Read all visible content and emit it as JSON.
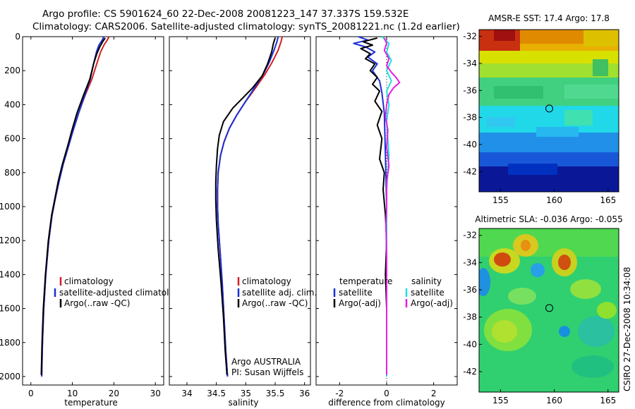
{
  "figure": {
    "title_line1": "Argo profile: CS 5901624_60 22-Dec-2008 20081223_147 37.337S 159.532E",
    "title_line2": "Climatology: CARS2006. Satellite-adjusted climatology: synTS_20081221.nc (1.2d earlier)",
    "footer_vertical": "CSIRO 27-Dec-2008 10:34:08",
    "credit_line1": "Argo AUSTRALIA",
    "credit_line2": "PI: Susan Wijffels",
    "colors": {
      "climatology": "#d42020",
      "satellite": "#1a2fd6",
      "argo": "#000000",
      "cyan": "#22e0e0",
      "magenta": "#e020e0"
    }
  },
  "chart_data": [
    {
      "id": "temperature",
      "type": "line",
      "xlabel": "temperature",
      "xlim": [
        -2,
        32
      ],
      "ylim": [
        2050,
        0
      ],
      "xticks": [
        0,
        10,
        20,
        30
      ],
      "yticks": [
        0,
        200,
        400,
        600,
        800,
        1000,
        1200,
        1400,
        1600,
        1800,
        2000
      ],
      "legend": [
        "climatology",
        "satellite-adjusted climatology",
        "Argo(..raw -QC)"
      ],
      "series": [
        {
          "name": "climatology",
          "color": "#d42020",
          "points": [
            [
              18.8,
              0
            ],
            [
              18.4,
              20
            ],
            [
              17.6,
              50
            ],
            [
              16.8,
              90
            ],
            [
              16.0,
              150
            ],
            [
              14.7,
              250
            ],
            [
              13.0,
              350
            ],
            [
              11.5,
              450
            ],
            [
              10.2,
              550
            ],
            [
              9.0,
              650
            ],
            [
              7.8,
              750
            ],
            [
              6.8,
              850
            ],
            [
              5.9,
              950
            ],
            [
              5.1,
              1050
            ],
            [
              4.3,
              1200
            ],
            [
              3.6,
              1400
            ],
            [
              3.1,
              1600
            ],
            [
              2.8,
              1800
            ],
            [
              2.6,
              2000
            ]
          ]
        },
        {
          "name": "satellite-adjusted climatology",
          "color": "#1a2fd6",
          "points": [
            [
              17.6,
              0
            ],
            [
              17.2,
              20
            ],
            [
              16.4,
              50
            ],
            [
              15.8,
              90
            ],
            [
              15.2,
              150
            ],
            [
              14.3,
              250
            ],
            [
              12.9,
              350
            ],
            [
              11.5,
              450
            ],
            [
              10.2,
              550
            ],
            [
              9.0,
              650
            ],
            [
              7.8,
              750
            ],
            [
              6.8,
              850
            ],
            [
              5.9,
              950
            ],
            [
              5.1,
              1050
            ],
            [
              4.3,
              1200
            ],
            [
              3.6,
              1400
            ],
            [
              3.1,
              1600
            ],
            [
              2.8,
              1800
            ],
            [
              2.6,
              2000
            ]
          ]
        },
        {
          "name": "Argo(..raw -QC)",
          "color": "#000000",
          "points": [
            [
              17.9,
              8
            ],
            [
              17.3,
              30
            ],
            [
              16.6,
              60
            ],
            [
              15.9,
              100
            ],
            [
              15.1,
              160
            ],
            [
              14.2,
              250
            ],
            [
              12.6,
              350
            ],
            [
              11.1,
              450
            ],
            [
              9.9,
              550
            ],
            [
              8.8,
              650
            ],
            [
              7.6,
              750
            ],
            [
              6.6,
              850
            ],
            [
              5.8,
              950
            ],
            [
              5.0,
              1050
            ],
            [
              4.2,
              1200
            ],
            [
              3.5,
              1400
            ],
            [
              3.0,
              1600
            ],
            [
              2.7,
              1800
            ],
            [
              2.5,
              1990
            ]
          ]
        }
      ]
    },
    {
      "id": "salinity",
      "type": "line",
      "xlabel": "salinity",
      "xlim": [
        33.7,
        36.1
      ],
      "ylim": [
        2050,
        0
      ],
      "xticks": [
        34,
        34.5,
        35,
        35.5,
        36
      ],
      "legend": [
        "climatology",
        "satellite adj. clim.",
        "Argo(..raw -QC)"
      ],
      "series": [
        {
          "name": "climatology",
          "color": "#d42020",
          "points": [
            [
              35.62,
              0
            ],
            [
              35.6,
              30
            ],
            [
              35.55,
              80
            ],
            [
              35.45,
              150
            ],
            [
              35.33,
              220
            ],
            [
              35.17,
              300
            ],
            [
              35.0,
              380
            ],
            [
              34.85,
              460
            ],
            [
              34.72,
              540
            ],
            [
              34.63,
              620
            ],
            [
              34.57,
              700
            ],
            [
              34.53,
              800
            ],
            [
              34.52,
              900
            ],
            [
              34.52,
              1000
            ],
            [
              34.53,
              1100
            ],
            [
              34.56,
              1250
            ],
            [
              34.6,
              1450
            ],
            [
              34.63,
              1650
            ],
            [
              34.66,
              1850
            ],
            [
              34.69,
              2000
            ]
          ]
        },
        {
          "name": "satellite adj. clim.",
          "color": "#1a2fd6",
          "points": [
            [
              35.55,
              0
            ],
            [
              35.53,
              30
            ],
            [
              35.48,
              80
            ],
            [
              35.4,
              150
            ],
            [
              35.3,
              220
            ],
            [
              35.15,
              300
            ],
            [
              35.0,
              380
            ],
            [
              34.85,
              460
            ],
            [
              34.72,
              540
            ],
            [
              34.63,
              620
            ],
            [
              34.57,
              700
            ],
            [
              34.53,
              800
            ],
            [
              34.52,
              900
            ],
            [
              34.52,
              1000
            ],
            [
              34.53,
              1100
            ],
            [
              34.56,
              1250
            ],
            [
              34.6,
              1450
            ],
            [
              34.63,
              1650
            ],
            [
              34.66,
              1850
            ],
            [
              34.69,
              2000
            ]
          ]
        },
        {
          "name": "Argo(..raw -QC)",
          "color": "#000000",
          "points": [
            [
              35.5,
              8
            ],
            [
              35.47,
              40
            ],
            [
              35.44,
              90
            ],
            [
              35.37,
              160
            ],
            [
              35.28,
              230
            ],
            [
              35.12,
              300
            ],
            [
              34.95,
              360
            ],
            [
              34.78,
              420
            ],
            [
              34.62,
              500
            ],
            [
              34.55,
              580
            ],
            [
              34.52,
              660
            ],
            [
              34.5,
              760
            ],
            [
              34.49,
              860
            ],
            [
              34.49,
              960
            ],
            [
              34.5,
              1080
            ],
            [
              34.53,
              1250
            ],
            [
              34.58,
              1450
            ],
            [
              34.62,
              1650
            ],
            [
              34.65,
              1850
            ],
            [
              34.68,
              1990
            ]
          ]
        }
      ]
    },
    {
      "id": "difference",
      "type": "line",
      "xlabel": "difference from climatology",
      "xlim": [
        -3,
        3
      ],
      "ylim": [
        2050,
        0
      ],
      "xticks": [
        -2,
        0,
        2
      ],
      "legend_left_title": "temperature",
      "legend_right_title": "salinity",
      "legend_left": [
        "satellite",
        "Argo(-adj)"
      ],
      "legend_right": [
        "satellite",
        "Argo(-adj)"
      ],
      "series": [
        {
          "name": "temperature satellite",
          "color": "#1a2fd6",
          "points": [
            [
              -1.2,
              0
            ],
            [
              -0.8,
              20
            ],
            [
              -1.4,
              40
            ],
            [
              -0.9,
              60
            ],
            [
              -0.5,
              90
            ],
            [
              -0.8,
              120
            ],
            [
              -0.4,
              160
            ],
            [
              -0.6,
              200
            ],
            [
              -0.3,
              260
            ],
            [
              -0.2,
              330
            ],
            [
              -0.1,
              450
            ],
            [
              -0.05,
              700
            ],
            [
              0.0,
              1000
            ],
            [
              0.0,
              1400
            ],
            [
              0.0,
              2000
            ]
          ]
        },
        {
          "name": "temperature Argo(-adj)",
          "color": "#000000",
          "points": [
            [
              -0.4,
              8
            ],
            [
              -1.0,
              30
            ],
            [
              -0.6,
              50
            ],
            [
              -1.1,
              70
            ],
            [
              -0.7,
              100
            ],
            [
              -0.9,
              130
            ],
            [
              -0.5,
              160
            ],
            [
              -0.7,
              200
            ],
            [
              -0.4,
              240
            ],
            [
              -0.6,
              280
            ],
            [
              -0.3,
              320
            ],
            [
              -0.5,
              380
            ],
            [
              -0.2,
              440
            ],
            [
              -0.4,
              520
            ],
            [
              -0.2,
              600
            ],
            [
              -0.3,
              720
            ],
            [
              -0.1,
              800
            ],
            [
              -0.15,
              900
            ],
            [
              -0.05,
              1050
            ],
            [
              0.0,
              1200
            ],
            [
              -0.05,
              1400
            ],
            [
              0.0,
              1600
            ],
            [
              0.0,
              1990
            ]
          ]
        },
        {
          "name": "salinity satellite",
          "color": "#22e0e0",
          "points": [
            [
              -0.2,
              0
            ],
            [
              0.1,
              40
            ],
            [
              0.0,
              90
            ],
            [
              0.2,
              140
            ],
            [
              0.0,
              200
            ],
            [
              0.2,
              260
            ],
            [
              0.0,
              320
            ],
            [
              0.1,
              400
            ],
            [
              0.0,
              500
            ],
            [
              0.1,
              700
            ],
            [
              0.0,
              900
            ],
            [
              0.0,
              1200
            ],
            [
              0.0,
              2000
            ]
          ]
        },
        {
          "name": "salinity Argo(-adj)",
          "color": "#e020e0",
          "points": [
            [
              -0.1,
              8
            ],
            [
              0.0,
              40
            ],
            [
              -0.1,
              80
            ],
            [
              0.1,
              130
            ],
            [
              0.0,
              170
            ],
            [
              0.2,
              210
            ],
            [
              0.4,
              240
            ],
            [
              0.55,
              270
            ],
            [
              0.3,
              300
            ],
            [
              0.1,
              340
            ],
            [
              0.0,
              400
            ],
            [
              -0.05,
              470
            ],
            [
              0.05,
              550
            ],
            [
              0.0,
              650
            ],
            [
              0.1,
              760
            ],
            [
              0.0,
              850
            ],
            [
              0.0,
              1000
            ],
            [
              -0.03,
              1100
            ],
            [
              0.0,
              1300
            ],
            [
              0.0,
              1990
            ]
          ]
        }
      ]
    },
    {
      "id": "sst_map",
      "type": "heatmap",
      "title": "AMSR-E SST: 17.4 Argo: 17.8",
      "xlim": [
        153,
        166
      ],
      "ylim": [
        -43.5,
        -31.5
      ],
      "xticks": [
        155,
        160,
        165
      ],
      "yticks": [
        -32,
        -34,
        -36,
        -38,
        -40,
        -42
      ],
      "marker": [
        159.532,
        -37.337
      ]
    },
    {
      "id": "sla_map",
      "type": "heatmap",
      "title": "Altimetric SLA: -0.036 Argo: -0.055",
      "xlim": [
        153,
        166
      ],
      "ylim": [
        -43.5,
        -31.5
      ],
      "xticks": [
        155,
        160,
        165
      ],
      "yticks": [
        -32,
        -34,
        -36,
        -38,
        -40,
        -42
      ],
      "marker": [
        159.532,
        -37.337
      ]
    }
  ]
}
